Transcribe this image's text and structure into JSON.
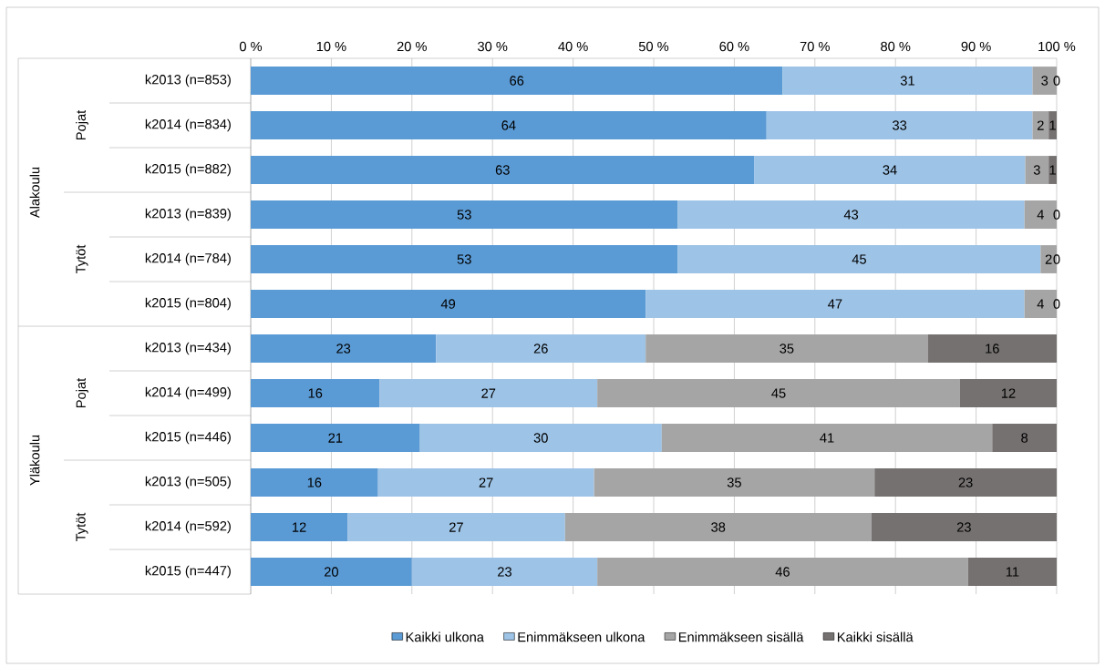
{
  "chart_data": {
    "type": "bar",
    "orientation": "horizontal",
    "stacked": true,
    "categories": [
      "k2013 (n=853)",
      "k2014 (n=834)",
      "k2015 (n=882)",
      "k2013 (n=839)",
      "k2014 (n=784)",
      "k2015 (n=804)",
      "k2013 (n=434)",
      "k2014 (n=499)",
      "k2015 (n=446)",
      "k2013 (n=505)",
      "k2014 (n=592)",
      "k2015 (n=447)"
    ],
    "series": [
      {
        "name": "Kaikki ulkona",
        "color": "#5b9bd5",
        "values": [
          66,
          64,
          62.5,
          53,
          53,
          49,
          23,
          16,
          21,
          15.8,
          12,
          20
        ],
        "value_labels": [
          "66",
          "64",
          "63",
          "53",
          "53",
          "49",
          "23",
          "16",
          "21",
          "16",
          "12",
          "20"
        ]
      },
      {
        "name": "Enimmäkseen ulkona",
        "color": "#9dc3e6",
        "values": [
          31,
          33,
          33.6,
          43,
          45,
          47,
          26,
          27,
          30,
          26.8,
          27,
          23
        ],
        "value_labels": [
          "31",
          "33",
          "34",
          "43",
          "45",
          "47",
          "26",
          "27",
          "30",
          "27",
          "27",
          "23"
        ]
      },
      {
        "name": "Enimmäkseen sisällä",
        "color": "#a5a5a5",
        "values": [
          3,
          2,
          2.9,
          4,
          2,
          4,
          35,
          45,
          41,
          34.8,
          38,
          46
        ],
        "value_labels": [
          "3",
          "2",
          "3",
          "4",
          "2",
          "4",
          "35",
          "45",
          "41",
          "35",
          "38",
          "46"
        ]
      },
      {
        "name": "Kaikki sisällä",
        "color": "#767171",
        "values": [
          0,
          1,
          1.0,
          0,
          0,
          0,
          16,
          12,
          8,
          22.6,
          23,
          11
        ],
        "value_labels": [
          "0",
          "1",
          "1",
          "0",
          "0",
          "0",
          "16",
          "12",
          "8",
          "23",
          "23",
          "11"
        ]
      }
    ],
    "xlim": [
      0,
      100
    ],
    "xticks": [
      {
        "value": 0,
        "label": "0 %"
      },
      {
        "value": 10,
        "label": "10 %"
      },
      {
        "value": 20,
        "label": "20 %"
      },
      {
        "value": 30,
        "label": "30 %"
      },
      {
        "value": 40,
        "label": "40 %"
      },
      {
        "value": 50,
        "label": "50 %"
      },
      {
        "value": 60,
        "label": "60 %"
      },
      {
        "value": 70,
        "label": "70 %"
      },
      {
        "value": 80,
        "label": "80 %"
      },
      {
        "value": 90,
        "label": "90 %"
      },
      {
        "value": 100,
        "label": "100 %"
      }
    ],
    "grid": "x",
    "legend": "bottom",
    "annotations": [
      "Alakoulu",
      "Pojat",
      "Tytöt",
      "Yläkoulu",
      "Pojat",
      "Tytöt"
    ]
  }
}
